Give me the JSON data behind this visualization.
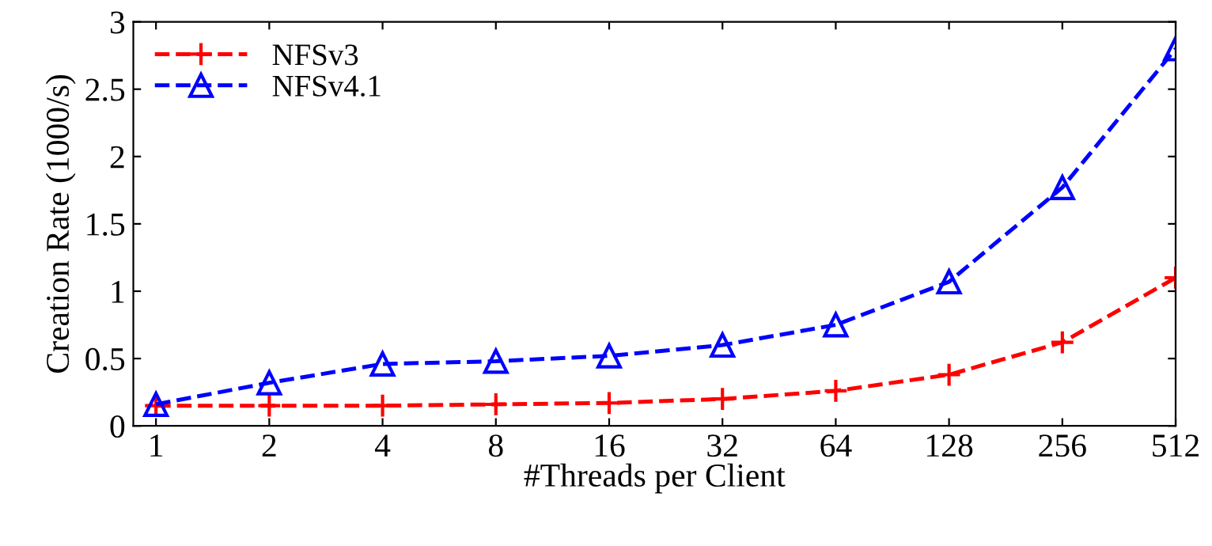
{
  "chart_data": {
    "type": "line",
    "xlabel": "#Threads per Client",
    "ylabel": "Creation Rate (1000/s)",
    "categories": [
      "1",
      "2",
      "4",
      "8",
      "16",
      "32",
      "64",
      "128",
      "256",
      "512"
    ],
    "series": [
      {
        "name": "NFSv3",
        "color": "#ff0000",
        "marker": "cross",
        "values": [
          0.15,
          0.15,
          0.15,
          0.16,
          0.17,
          0.2,
          0.26,
          0.38,
          0.62,
          1.1
        ]
      },
      {
        "name": "NFSv4.1",
        "color": "#0000ff",
        "marker": "triangle",
        "values": [
          0.16,
          0.32,
          0.46,
          0.48,
          0.52,
          0.6,
          0.75,
          1.07,
          1.77,
          2.8
        ]
      }
    ],
    "ylim": [
      0,
      3
    ],
    "yticks": [
      0,
      0.5,
      1,
      1.5,
      2,
      2.5,
      3
    ],
    "line_style": "dashed",
    "grid": false,
    "legend": "top left"
  }
}
